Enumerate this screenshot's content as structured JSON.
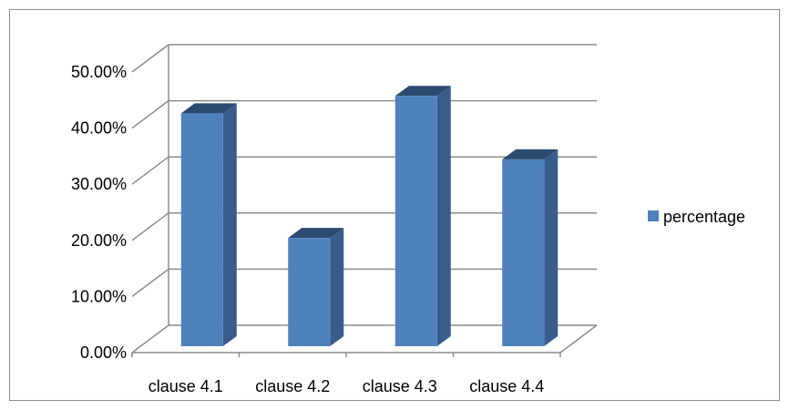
{
  "chart_data": {
    "type": "bar",
    "categories": [
      "clause 4.1",
      "clause 4.2",
      "clause 4.3",
      "clause 4.4"
    ],
    "series": [
      {
        "name": "percentage",
        "values": [
          41.5,
          19.3,
          44.6,
          33.3
        ]
      }
    ],
    "ylim": [
      0,
      50
    ],
    "yticks": [
      "0.00%",
      "10.00%",
      "20.00%",
      "30.00%",
      "40.00%",
      "50.00%"
    ],
    "title": "",
    "xlabel": "",
    "ylabel": "",
    "grid": true,
    "legend_position": "right",
    "three_d": true,
    "colors": {
      "bar_front": "#4f81bd",
      "bar_side": "#385d8a",
      "bar_top": "#2c4a70",
      "grid": "#8c8c8c",
      "axis": "#8c8c8c"
    }
  }
}
